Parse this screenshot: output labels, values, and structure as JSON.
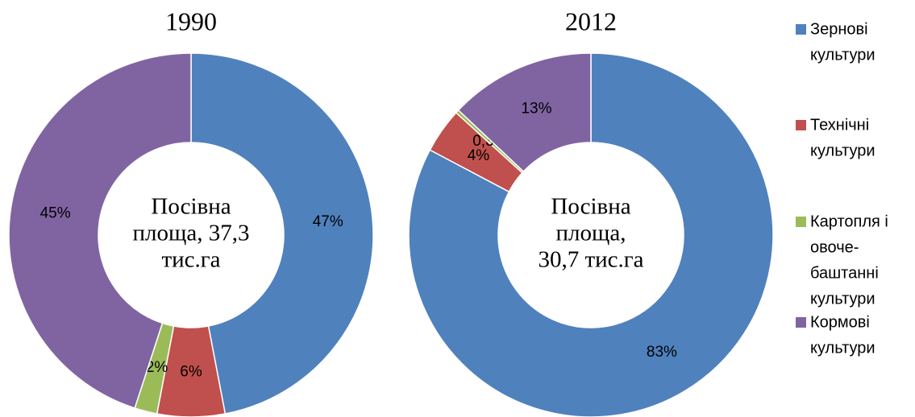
{
  "categories": [
    [
      "Зернові",
      "культури"
    ],
    [
      "Технічні",
      "культури"
    ],
    [
      "Картопля і",
      "овоче-",
      "баштанні",
      "культури"
    ],
    [
      "Кормові",
      "культури"
    ]
  ],
  "colors": [
    "#4f81bd",
    "#c0504d",
    "#9bbb59",
    "#8064a2"
  ],
  "chart_data": [
    {
      "type": "donut",
      "title": "1990",
      "center_label": [
        "Посівна",
        "площа, 37,3",
        "тис.га"
      ],
      "values": [
        47,
        6,
        2,
        45
      ],
      "value_labels": [
        "47%",
        "6%",
        "2%",
        "45%"
      ]
    },
    {
      "type": "donut",
      "title": "2012",
      "center_label": [
        "Посівна",
        "площа,",
        "30,7 тис.га"
      ],
      "values": [
        83,
        4,
        0.3,
        13
      ],
      "value_labels": [
        "83%",
        "4%",
        "0,3%",
        "13%"
      ]
    }
  ]
}
